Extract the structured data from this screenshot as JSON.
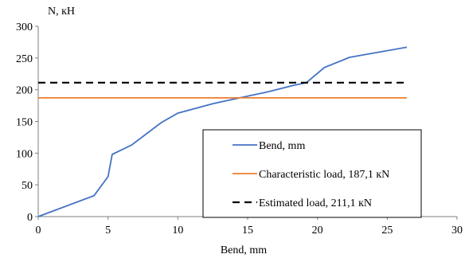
{
  "chart_data": {
    "type": "line",
    "title": "",
    "xlabel": "Bend, mm",
    "ylabel": "N, кН",
    "xlim": [
      0,
      30
    ],
    "ylim": [
      0,
      300
    ],
    "xticks": [
      0,
      5,
      10,
      15,
      20,
      25,
      30
    ],
    "yticks": [
      0,
      50,
      100,
      150,
      200,
      250,
      300
    ],
    "grid": false,
    "legend_position": "bottom-right",
    "series": [
      {
        "name": "Bend, mm",
        "color": "#4472c4",
        "style": "solid",
        "x": [
          0,
          4.0,
          5.0,
          5.3,
          6.7,
          8.8,
          10.0,
          12.5,
          14.4,
          16.5,
          18.3,
          19.2,
          20.5,
          22.3,
          26.4
        ],
        "y": [
          0,
          33,
          63,
          98,
          113,
          148,
          163,
          178,
          187,
          197,
          207,
          211,
          235,
          251,
          267
        ]
      },
      {
        "name": "Characteristic load, 187,1 кN",
        "color": "#ed7d31",
        "style": "solid",
        "x": [
          0,
          26.4
        ],
        "y": [
          187.1,
          187.1
        ]
      },
      {
        "name": "Estimated load, 211,1 кN",
        "color": "#000000",
        "style": "dashed",
        "x": [
          0,
          26.4
        ],
        "y": [
          211.1,
          211.1
        ]
      }
    ]
  }
}
